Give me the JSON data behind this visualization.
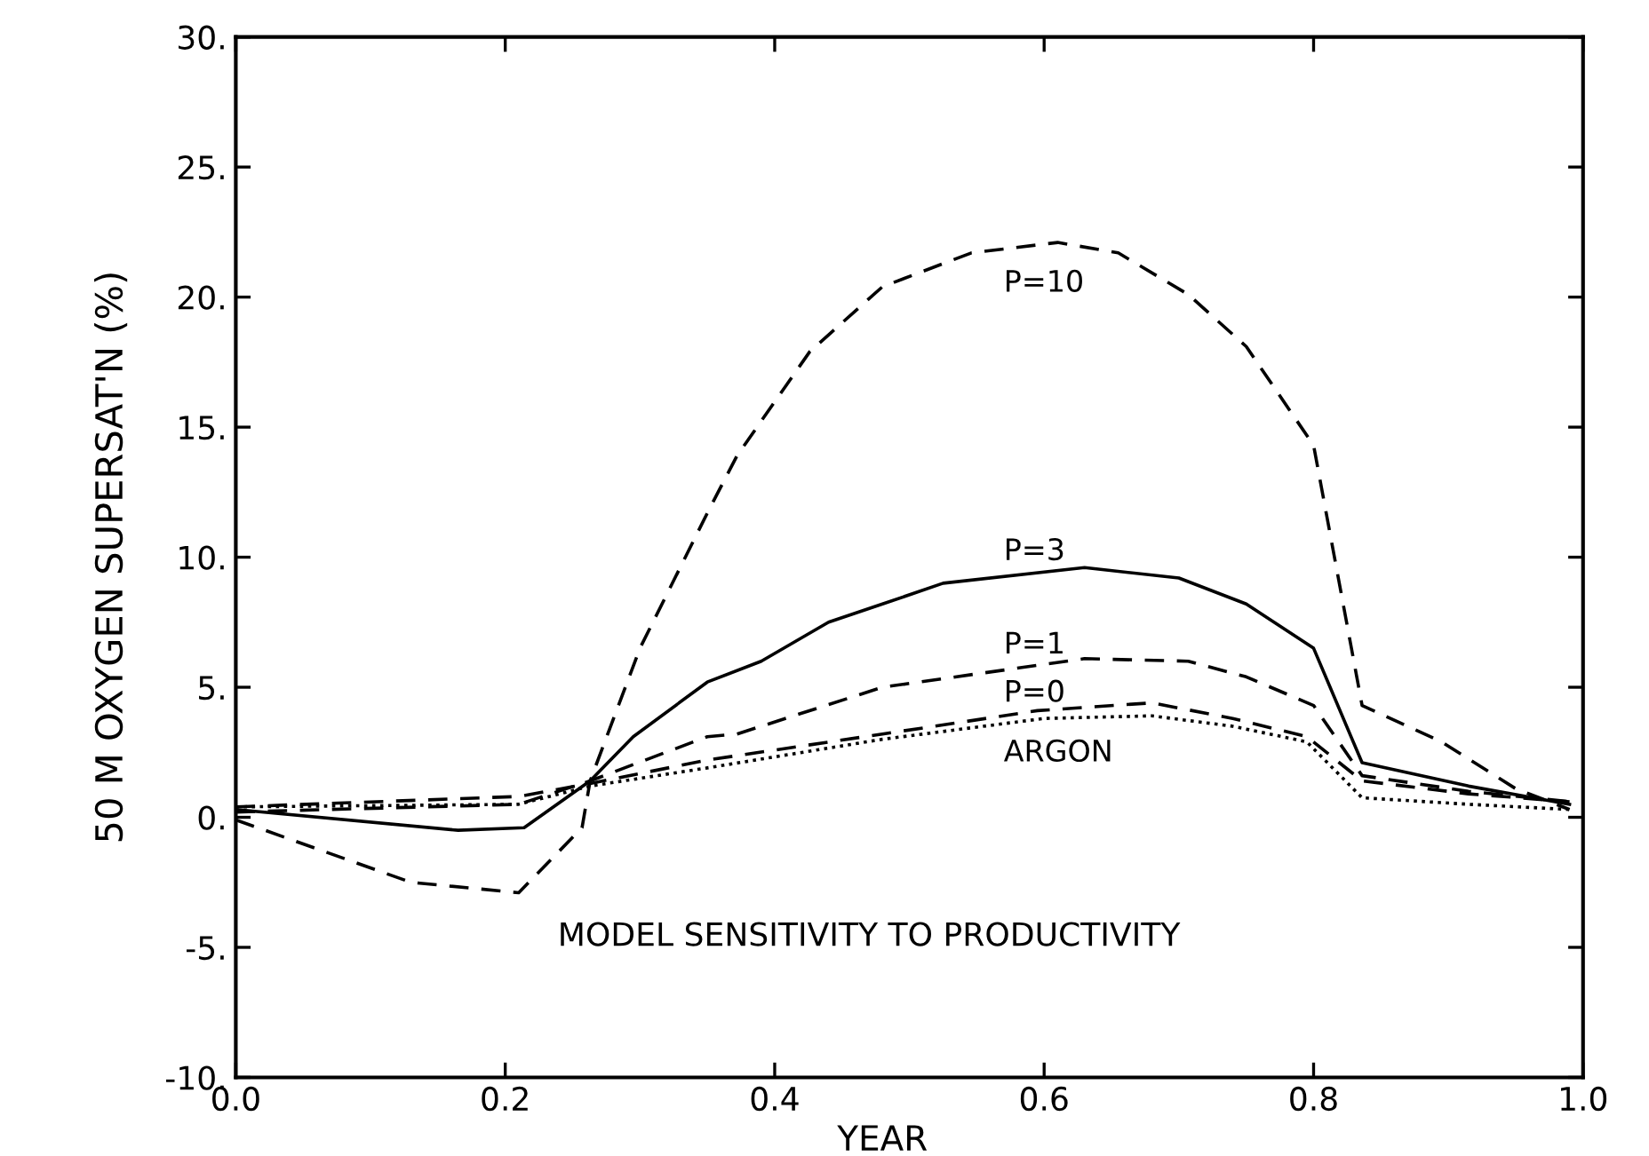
{
  "chart_data": {
    "type": "line",
    "xlabel": "YEAR",
    "ylabel": "50 M OXYGEN SUPERSAT'N (%)",
    "xlim": [
      0,
      1
    ],
    "ylim": [
      -10,
      30
    ],
    "xticks": [
      {
        "value": 0,
        "label": "0.0"
      },
      {
        "value": 0.2,
        "label": "0.2"
      },
      {
        "value": 0.4,
        "label": "0.4"
      },
      {
        "value": 0.6,
        "label": "0.6"
      },
      {
        "value": 0.8,
        "label": "0.8"
      },
      {
        "value": 1,
        "label": "1.0"
      }
    ],
    "yticks": [
      {
        "value": -10,
        "label": "-10."
      },
      {
        "value": -5,
        "label": "-5."
      },
      {
        "value": 0,
        "label": "0."
      },
      {
        "value": 5,
        "label": "5."
      },
      {
        "value": 10,
        "label": "10."
      },
      {
        "value": 15,
        "label": "15."
      },
      {
        "value": 20,
        "label": "20."
      },
      {
        "value": 25,
        "label": "25."
      },
      {
        "value": 30,
        "label": "30."
      }
    ],
    "grid": false,
    "legend": false,
    "marker": "none",
    "series": [
      {
        "name": "P=10",
        "color": "#000000",
        "line_style": "dashed",
        "x": [
          0,
          0.13,
          0.21,
          0.257,
          0.263,
          0.3,
          0.35,
          0.372,
          0.426,
          0.48,
          0.546,
          0.61,
          0.655,
          0.707,
          0.75,
          0.8,
          0.836,
          0.895,
          0.95,
          0.99
        ],
        "values": [
          -0.1,
          -2.5,
          -2.9,
          -0.4,
          1.4,
          6.5,
          11.7,
          13.9,
          17.9,
          20.4,
          21.7,
          22.1,
          21.7,
          20.1,
          18.1,
          14.3,
          4.3,
          2.9,
          1.1,
          0.3
        ]
      },
      {
        "name": "P=3",
        "color": "#000000",
        "line_style": "solid",
        "x": [
          0,
          0.165,
          0.214,
          0.263,
          0.295,
          0.35,
          0.39,
          0.44,
          0.48,
          0.525,
          0.63,
          0.7,
          0.75,
          0.8,
          0.836,
          0.915,
          0.99
        ],
        "values": [
          0.3,
          -0.5,
          -0.4,
          1.4,
          3.1,
          5.2,
          6.0,
          7.5,
          8.2,
          9.0,
          9.6,
          9.2,
          8.2,
          6.5,
          2.1,
          1.2,
          0.5
        ]
      },
      {
        "name": "P=1",
        "color": "#000000",
        "line_style": "dashed",
        "x": [
          0,
          0.21,
          0.263,
          0.35,
          0.372,
          0.48,
          0.63,
          0.707,
          0.75,
          0.8,
          0.836,
          0.915,
          0.99
        ],
        "values": [
          0.2,
          0.5,
          1.4,
          3.1,
          3.2,
          5.0,
          6.1,
          6.0,
          5.4,
          4.3,
          1.6,
          1.0,
          0.6
        ]
      },
      {
        "name": "P=0",
        "color": "#000000",
        "line_style": "dashed",
        "x": [
          0,
          0.21,
          0.263,
          0.35,
          0.48,
          0.595,
          0.68,
          0.74,
          0.795,
          0.836,
          0.915,
          0.99
        ],
        "values": [
          0.4,
          0.8,
          1.3,
          2.2,
          3.2,
          4.1,
          4.4,
          3.8,
          3.1,
          1.4,
          0.9,
          0.6
        ]
      },
      {
        "name": "ARGON",
        "color": "#000000",
        "line_style": "dotted",
        "x": [
          0,
          0.21,
          0.263,
          0.35,
          0.48,
          0.6,
          0.68,
          0.74,
          0.795,
          0.836,
          0.915,
          0.99
        ],
        "values": [
          0.4,
          0.5,
          1.2,
          1.9,
          3.0,
          3.8,
          3.9,
          3.5,
          2.9,
          0.75,
          0.5,
          0.3
        ]
      }
    ],
    "annotations": [
      "MODEL SENSITIVITY TO PRODUCTIVITY"
    ]
  }
}
